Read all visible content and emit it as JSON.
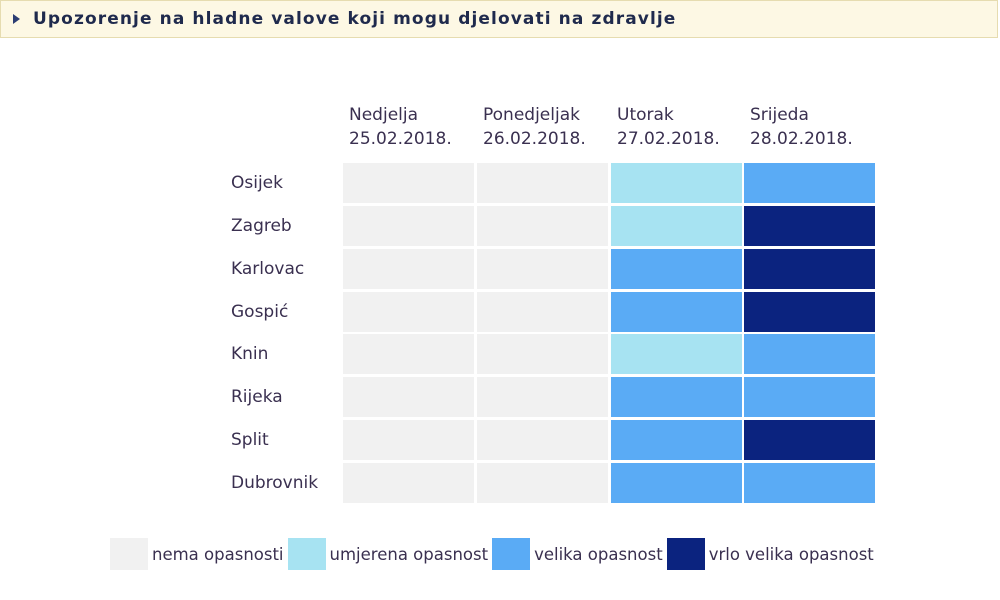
{
  "header": {
    "title": "Upozorenje na hladne valove koji mogu djelovati na zdravlje"
  },
  "colors": {
    "none": "#f1f1f1",
    "moderate": "#a7e3f2",
    "high": "#5aabf5",
    "very_high": "#0b237f",
    "header_bg": "#fdf8e4"
  },
  "days": [
    {
      "name": "Nedjelja",
      "date": "25.02.2018."
    },
    {
      "name": "Ponedjeljak",
      "date": "26.02.2018."
    },
    {
      "name": "Utorak",
      "date": "27.02.2018."
    },
    {
      "name": "Srijeda",
      "date": "28.02.2018."
    }
  ],
  "cities": [
    {
      "name": "Osijek",
      "levels": [
        "none",
        "none",
        "moderate",
        "high"
      ]
    },
    {
      "name": "Zagreb",
      "levels": [
        "none",
        "none",
        "moderate",
        "very_high"
      ]
    },
    {
      "name": "Karlovac",
      "levels": [
        "none",
        "none",
        "high",
        "very_high"
      ]
    },
    {
      "name": "Gospić",
      "levels": [
        "none",
        "none",
        "high",
        "very_high"
      ]
    },
    {
      "name": "Knin",
      "levels": [
        "none",
        "none",
        "moderate",
        "high"
      ]
    },
    {
      "name": "Rijeka",
      "levels": [
        "none",
        "none",
        "high",
        "high"
      ]
    },
    {
      "name": "Split",
      "levels": [
        "none",
        "none",
        "high",
        "very_high"
      ]
    },
    {
      "name": "Dubrovnik",
      "levels": [
        "none",
        "none",
        "high",
        "high"
      ]
    }
  ],
  "legend": [
    {
      "level": "none",
      "label": "nema opasnosti"
    },
    {
      "level": "moderate",
      "label": "umjerena opasnost"
    },
    {
      "level": "high",
      "label": "velika opasnost"
    },
    {
      "level": "very_high",
      "label": "vrlo velika opasnost"
    }
  ]
}
